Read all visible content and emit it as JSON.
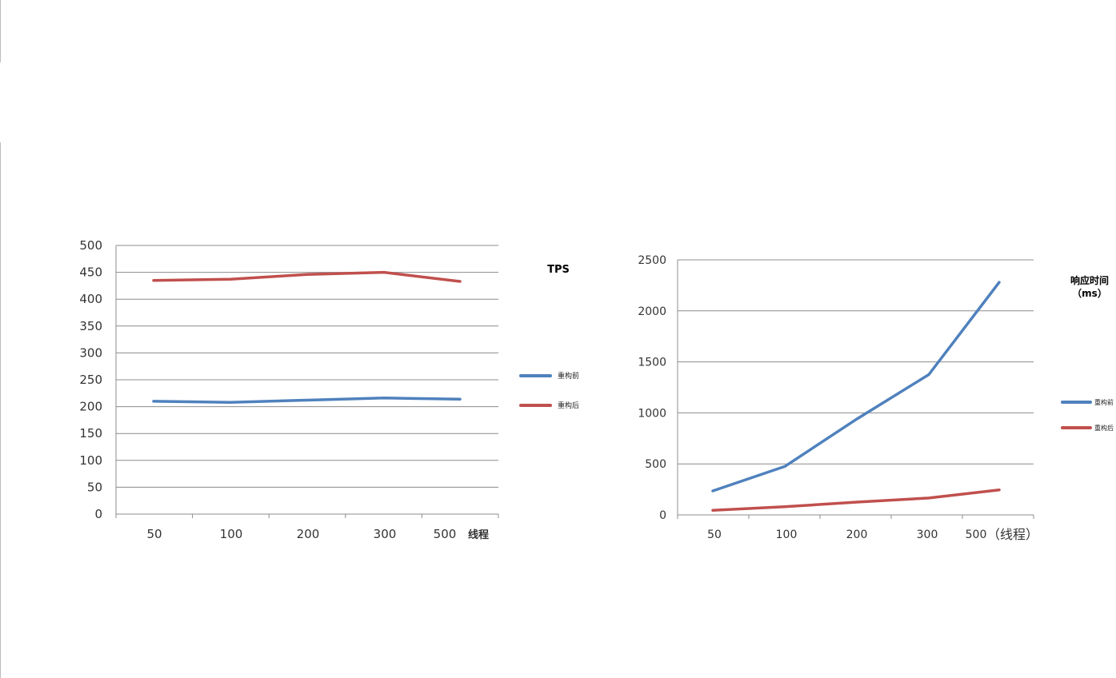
{
  "chart_data": [
    {
      "type": "line",
      "title": "TPS",
      "categories": [
        "50",
        "100",
        "200",
        "300",
        "500"
      ],
      "xlabel": "线程",
      "ylim": [
        0,
        500
      ],
      "yticks": [
        0,
        50,
        100,
        150,
        200,
        250,
        300,
        350,
        400,
        450,
        500
      ],
      "grid": true,
      "legend": "right",
      "series": [
        {
          "name": "重构前",
          "color": "#4f81bd",
          "values": [
            210,
            208,
            212,
            216,
            214
          ]
        },
        {
          "name": "重构后",
          "color": "#c0504d",
          "values": [
            435,
            437,
            446,
            450,
            433
          ]
        }
      ]
    },
    {
      "type": "line",
      "title": "响应时间",
      "subtitle": "（ms）",
      "categories": [
        "50",
        "100",
        "200",
        "300",
        "500"
      ],
      "xlabel": "（线程）",
      "ylim": [
        0,
        2500
      ],
      "yticks": [
        0,
        500,
        1000,
        1500,
        2000,
        2500
      ],
      "grid": true,
      "legend": "right",
      "series": [
        {
          "name": "重构前",
          "color": "#4f81bd",
          "values": [
            235,
            475,
            940,
            1375,
            2280
          ]
        },
        {
          "name": "重构后",
          "color": "#c0504d",
          "values": [
            45,
            80,
            125,
            165,
            245
          ]
        }
      ]
    }
  ]
}
